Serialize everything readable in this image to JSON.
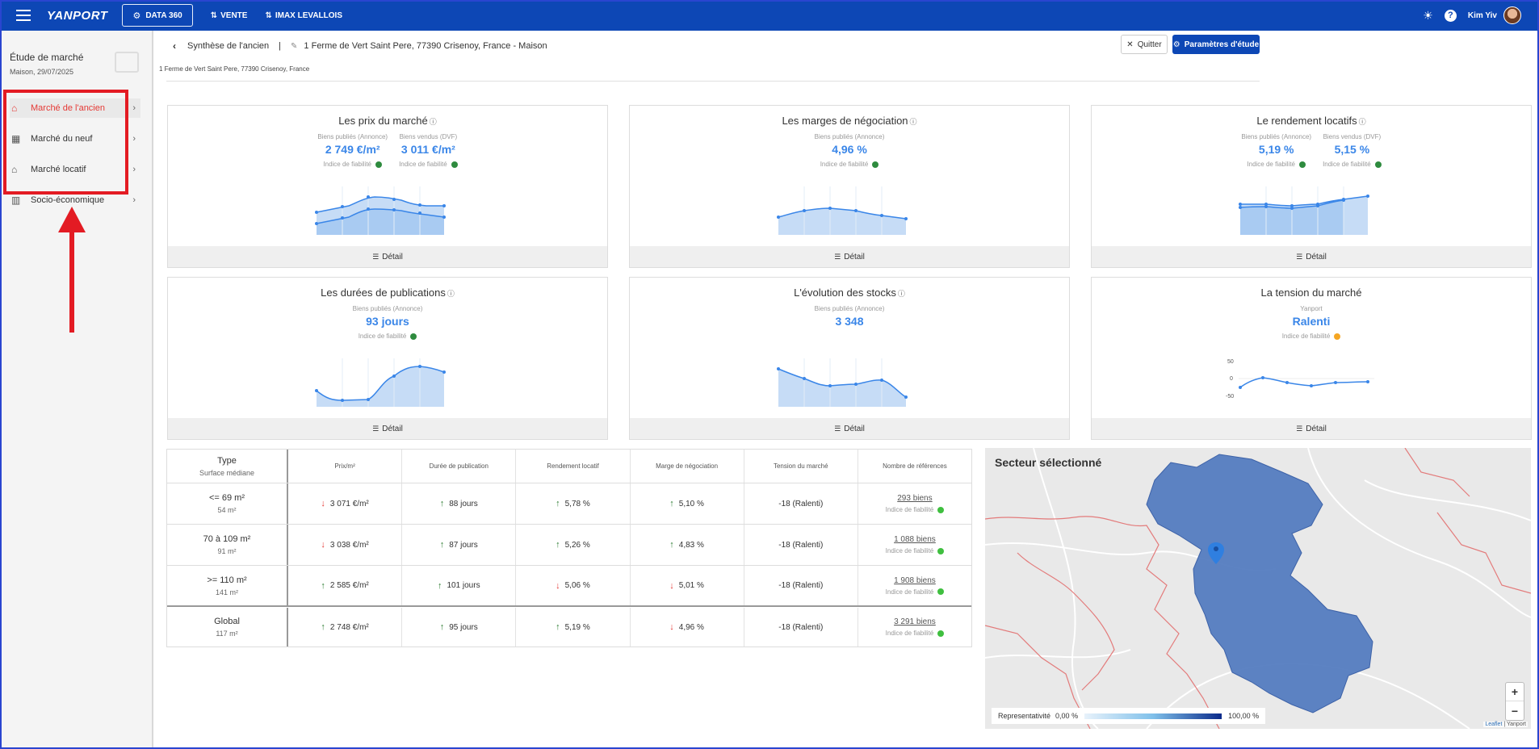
{
  "topbar": {
    "logo": "YANPORT",
    "data360": "DATA 360",
    "vente": "VENTE",
    "imax": "IMAX LEVALLOIS",
    "user": "Kim Yiv"
  },
  "sidebar": {
    "title": "Étude de marché",
    "subtitle": "Maison, 29/07/2025",
    "items": [
      {
        "label": "Marché de l'ancien",
        "icon": "house-hand-icon"
      },
      {
        "label": "Marché du neuf",
        "icon": "building-icon"
      },
      {
        "label": "Marché locatif",
        "icon": "tenant-icon"
      },
      {
        "label": "Socio-économique",
        "icon": "bar-chart-icon"
      }
    ]
  },
  "header": {
    "crumb": "Synthèse de l'ancien",
    "separator": "|",
    "address_title": "1 Ferme de Vert Saint Pere, 77390 Crisenoy, France - Maison",
    "address_sub": "1 Ferme de Vert Saint Pere, 77390 Crisenoy, France",
    "quit": "Quitter",
    "params": "Paramètres d'étude"
  },
  "cards": {
    "detail": "Détail",
    "fiab": "Indice de fiabilité",
    "prix": {
      "title": "Les prix du marché",
      "l1": "Biens publiés (Annonce)",
      "v1": "2 749 €/m²",
      "l2": "Biens vendus (DVF)",
      "v2": "3 011 €/m²"
    },
    "marges": {
      "title": "Les marges de négociation",
      "l1": "Biens publiés (Annonce)",
      "v1": "4,96 %"
    },
    "rendement": {
      "title": "Le rendement locatifs",
      "l1": "Biens publiés (Annonce)",
      "v1": "5,19 %",
      "l2": "Biens vendus (DVF)",
      "v2": "5,15 %"
    },
    "durees": {
      "title": "Les durées de publications",
      "l1": "Biens publiés (Annonce)",
      "v1": "93 jours"
    },
    "stocks": {
      "title": "L'évolution des stocks",
      "l1": "Biens publiés (Annonce)",
      "v1": "3 348"
    },
    "tension": {
      "title": "La tension du marché",
      "l1": "Yanport",
      "v1": "Ralenti",
      "ticks": [
        "50",
        "0",
        "-50"
      ]
    }
  },
  "colors": {
    "green": "#2e8b3e",
    "orange": "#f5a623",
    "blue": "#3a86e8",
    "red_annotation": "#e31b23"
  },
  "table": {
    "headers": [
      "Type",
      "Surface médiane",
      "Prix/m²",
      "Durée de publication",
      "Rendement locatif",
      "Marge de négociation",
      "Tension du marché",
      "Nombre de références"
    ],
    "rows": [
      {
        "type": "<= 69 m²",
        "surf": "54 m²",
        "prix": "3 071 €/m²",
        "prix_dir": "down",
        "duree": "88 jours",
        "duree_dir": "up",
        "rend": "5,78 %",
        "rend_dir": "up",
        "marge": "5,10 %",
        "marge_dir": "up",
        "tension": "-18 (Ralenti)",
        "refs": "293 biens"
      },
      {
        "type": "70 à 109 m²",
        "surf": "91 m²",
        "prix": "3 038 €/m²",
        "prix_dir": "down",
        "duree": "87 jours",
        "duree_dir": "up",
        "rend": "5,26 %",
        "rend_dir": "up",
        "marge": "4,83 %",
        "marge_dir": "up",
        "tension": "-18 (Ralenti)",
        "refs": "1 088 biens"
      },
      {
        "type": ">= 110 m²",
        "surf": "141 m²",
        "prix": "2 585 €/m²",
        "prix_dir": "up",
        "duree": "101 jours",
        "duree_dir": "up",
        "rend": "5,06 %",
        "rend_dir": "down",
        "marge": "5,01 %",
        "marge_dir": "down",
        "tension": "-18 (Ralenti)",
        "refs": "1 908 biens"
      },
      {
        "type": "Global",
        "surf": "117 m²",
        "prix": "2 748 €/m²",
        "prix_dir": "up",
        "duree": "95 jours",
        "duree_dir": "up",
        "rend": "5,19 %",
        "rend_dir": "up",
        "marge": "4,96 %",
        "marge_dir": "down",
        "tension": "-18 (Ralenti)",
        "refs": "3 291 biens"
      }
    ]
  },
  "map": {
    "title": "Secteur sélectionné",
    "legend_label": "Representativité",
    "legend_min": "0,00 %",
    "legend_max": "100,00 %",
    "attribution_link": "Leaflet",
    "attribution_rest": "| Yanport",
    "zoom_in": "+",
    "zoom_out": "−"
  }
}
